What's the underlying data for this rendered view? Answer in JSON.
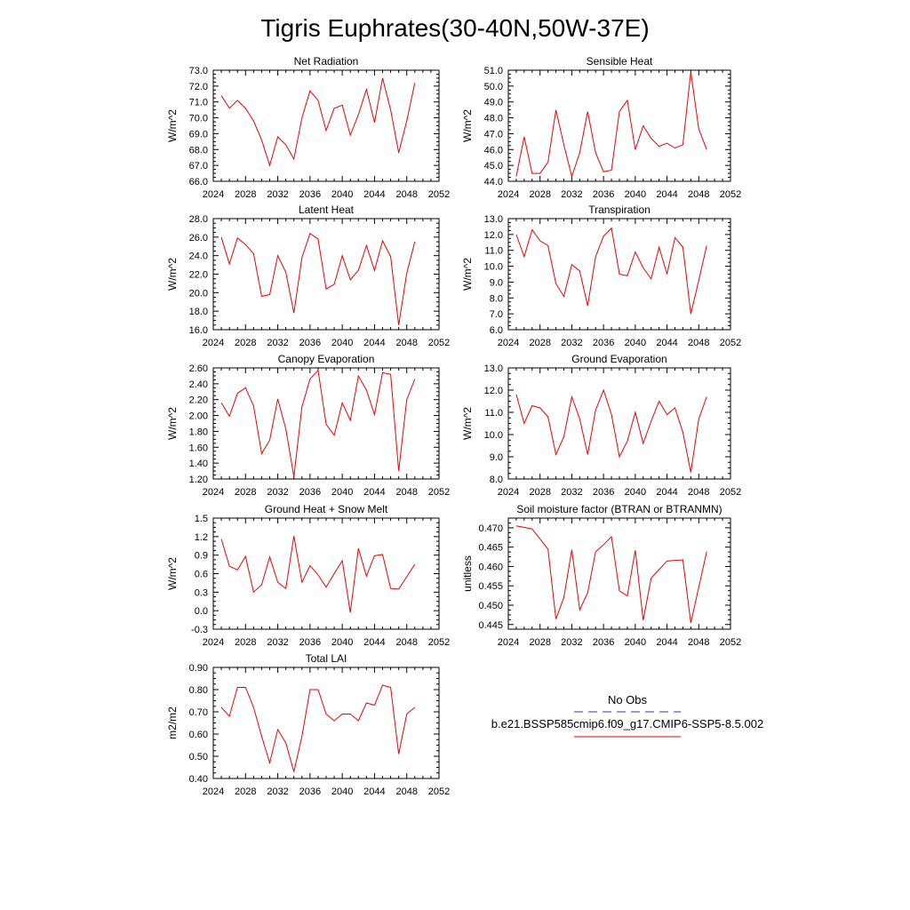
{
  "figure": {
    "title": "Tigris Euphrates(30-40N,50W-37E)"
  },
  "legend": {
    "items": [
      {
        "label": "No Obs",
        "color": "#3333aa",
        "style": "dashed"
      },
      {
        "label": "b.e21.BSSP585cmip6.f09_g17.CMIP6-SSP5-8.5.002",
        "color": "#ee0000",
        "style": "solid"
      }
    ]
  },
  "chart_data": [
    {
      "type": "line",
      "title": "Net Radiation",
      "ylabel": "W/m^2",
      "xlim": [
        2024,
        2052
      ],
      "ylim": [
        66.0,
        73.0
      ],
      "xticks": [
        2024,
        2028,
        2032,
        2036,
        2040,
        2044,
        2048,
        2052
      ],
      "yticks": [
        66.0,
        67.0,
        68.0,
        69.0,
        70.0,
        71.0,
        72.0,
        73.0
      ],
      "ytick_decimals": 1,
      "x": [
        2025,
        2026,
        2027,
        2028,
        2029,
        2030,
        2031,
        2032,
        2033,
        2034,
        2035,
        2036,
        2037,
        2038,
        2039,
        2040,
        2041,
        2042,
        2043,
        2044,
        2045,
        2046,
        2047,
        2048,
        2049
      ],
      "series": [
        {
          "color": "#ee0000",
          "values": [
            71.4,
            70.6,
            71.1,
            70.6,
            69.8,
            68.6,
            67.0,
            68.8,
            68.3,
            67.4,
            70.0,
            71.7,
            71.1,
            69.2,
            70.6,
            70.8,
            68.9,
            70.2,
            71.8,
            69.7,
            72.5,
            70.5,
            67.8,
            69.8,
            72.2
          ]
        }
      ]
    },
    {
      "type": "line",
      "title": "Sensible Heat",
      "ylabel": "W/m^2",
      "xlim": [
        2024,
        2052
      ],
      "ylim": [
        44.0,
        51.0
      ],
      "xticks": [
        2024,
        2028,
        2032,
        2036,
        2040,
        2044,
        2048,
        2052
      ],
      "yticks": [
        44.0,
        45.0,
        46.0,
        47.0,
        48.0,
        49.0,
        50.0,
        51.0
      ],
      "ytick_decimals": 1,
      "x": [
        2025,
        2026,
        2027,
        2028,
        2029,
        2030,
        2031,
        2032,
        2033,
        2034,
        2035,
        2036,
        2037,
        2038,
        2039,
        2040,
        2041,
        2042,
        2043,
        2044,
        2045,
        2046,
        2047,
        2048,
        2049
      ],
      "series": [
        {
          "color": "#ee0000",
          "values": [
            44.3,
            46.8,
            44.5,
            44.5,
            45.2,
            48.5,
            46.3,
            44.3,
            45.8,
            48.4,
            45.8,
            44.6,
            44.7,
            48.4,
            49.1,
            46.0,
            47.5,
            46.7,
            46.2,
            46.4,
            46.1,
            46.3,
            50.9,
            47.3,
            46.0
          ]
        }
      ]
    },
    {
      "type": "line",
      "title": "Latent Heat",
      "ylabel": "W/m^2",
      "xlim": [
        2024,
        2052
      ],
      "ylim": [
        16.0,
        28.0
      ],
      "xticks": [
        2024,
        2028,
        2032,
        2036,
        2040,
        2044,
        2048,
        2052
      ],
      "yticks": [
        16.0,
        18.0,
        20.0,
        22.0,
        24.0,
        26.0,
        28.0
      ],
      "ytick_decimals": 1,
      "x": [
        2025,
        2026,
        2027,
        2028,
        2029,
        2030,
        2031,
        2032,
        2033,
        2034,
        2035,
        2036,
        2037,
        2038,
        2039,
        2040,
        2041,
        2042,
        2043,
        2044,
        2045,
        2046,
        2047,
        2048,
        2049
      ],
      "series": [
        {
          "color": "#ee0000",
          "values": [
            26.0,
            23.1,
            25.9,
            25.2,
            24.2,
            19.6,
            19.8,
            24.0,
            22.2,
            17.8,
            23.8,
            26.4,
            25.8,
            20.4,
            20.9,
            24.0,
            21.4,
            22.4,
            25.1,
            22.4,
            25.6,
            23.9,
            16.5,
            22.1,
            25.5
          ]
        }
      ]
    },
    {
      "type": "line",
      "title": "Transpiration",
      "ylabel": "W/m^2",
      "xlim": [
        2024,
        2052
      ],
      "ylim": [
        6.0,
        13.0
      ],
      "xticks": [
        2024,
        2028,
        2032,
        2036,
        2040,
        2044,
        2048,
        2052
      ],
      "yticks": [
        6.0,
        7.0,
        8.0,
        9.0,
        10.0,
        11.0,
        12.0,
        13.0
      ],
      "ytick_decimals": 1,
      "x": [
        2025,
        2026,
        2027,
        2028,
        2029,
        2030,
        2031,
        2032,
        2033,
        2034,
        2035,
        2036,
        2037,
        2038,
        2039,
        2040,
        2041,
        2042,
        2043,
        2044,
        2045,
        2046,
        2047,
        2048,
        2049
      ],
      "series": [
        {
          "color": "#ee0000",
          "values": [
            12.0,
            10.6,
            12.3,
            11.6,
            11.3,
            8.9,
            8.1,
            10.1,
            9.7,
            7.5,
            10.6,
            11.9,
            12.4,
            9.5,
            9.4,
            10.9,
            9.9,
            9.2,
            11.2,
            9.5,
            11.8,
            11.2,
            7.0,
            9.1,
            11.3
          ]
        }
      ]
    },
    {
      "type": "line",
      "title": "Canopy Evaporation",
      "ylabel": "W/m^2",
      "xlim": [
        2024,
        2052
      ],
      "ylim": [
        1.2,
        2.6
      ],
      "xticks": [
        2024,
        2028,
        2032,
        2036,
        2040,
        2044,
        2048,
        2052
      ],
      "yticks": [
        1.2,
        1.4,
        1.6,
        1.8,
        2.0,
        2.2,
        2.4,
        2.6
      ],
      "ytick_decimals": 2,
      "x": [
        2025,
        2026,
        2027,
        2028,
        2029,
        2030,
        2031,
        2032,
        2033,
        2034,
        2035,
        2036,
        2037,
        2038,
        2039,
        2040,
        2041,
        2042,
        2043,
        2044,
        2045,
        2046,
        2047,
        2048,
        2049
      ],
      "series": [
        {
          "color": "#ee0000",
          "values": [
            2.16,
            1.99,
            2.28,
            2.35,
            2.12,
            1.52,
            1.69,
            2.21,
            1.83,
            1.23,
            2.11,
            2.46,
            2.57,
            1.89,
            1.75,
            2.16,
            1.94,
            2.5,
            2.32,
            2.01,
            2.54,
            2.52,
            1.3,
            2.2,
            2.46
          ]
        }
      ]
    },
    {
      "type": "line",
      "title": "Ground Evaporation",
      "ylabel": "W/m^2",
      "xlim": [
        2024,
        2052
      ],
      "ylim": [
        8.0,
        13.0
      ],
      "xticks": [
        2024,
        2028,
        2032,
        2036,
        2040,
        2044,
        2048,
        2052
      ],
      "yticks": [
        8.0,
        9.0,
        10.0,
        11.0,
        12.0,
        13.0
      ],
      "ytick_decimals": 1,
      "x": [
        2025,
        2026,
        2027,
        2028,
        2029,
        2030,
        2031,
        2032,
        2033,
        2034,
        2035,
        2036,
        2037,
        2038,
        2039,
        2040,
        2041,
        2042,
        2043,
        2044,
        2045,
        2046,
        2047,
        2048,
        2049
      ],
      "series": [
        {
          "color": "#ee0000",
          "values": [
            11.8,
            10.5,
            11.3,
            11.2,
            10.8,
            9.1,
            9.9,
            11.7,
            10.7,
            9.1,
            11.1,
            12.0,
            10.9,
            9.0,
            9.7,
            11.0,
            9.6,
            10.6,
            11.5,
            10.9,
            11.2,
            10.1,
            8.3,
            10.7,
            11.7
          ]
        }
      ]
    },
    {
      "type": "line",
      "title": "Ground Heat + Snow Melt",
      "ylabel": "W/m^2",
      "xlim": [
        2024,
        2052
      ],
      "ylim": [
        -0.3,
        1.5
      ],
      "xticks": [
        2024,
        2028,
        2032,
        2036,
        2040,
        2044,
        2048,
        2052
      ],
      "yticks": [
        -0.3,
        0.0,
        0.3,
        0.6,
        0.9,
        1.2,
        1.5
      ],
      "ytick_decimals": 1,
      "x": [
        2025,
        2026,
        2027,
        2028,
        2029,
        2030,
        2031,
        2032,
        2033,
        2034,
        2035,
        2036,
        2037,
        2038,
        2039,
        2040,
        2041,
        2042,
        2043,
        2044,
        2045,
        2046,
        2047,
        2048,
        2049
      ],
      "series": [
        {
          "color": "#ee0000",
          "values": [
            1.16,
            0.72,
            0.66,
            0.88,
            0.3,
            0.42,
            0.87,
            0.46,
            0.36,
            1.21,
            0.46,
            0.73,
            0.58,
            0.38,
            0.6,
            0.81,
            -0.03,
            1.01,
            0.56,
            0.89,
            0.91,
            0.36,
            0.35,
            0.55,
            0.75
          ]
        }
      ]
    },
    {
      "type": "line",
      "title": "Soil moisture factor (BTRAN or BTRANMN)",
      "ylabel": "unitless",
      "xlim": [
        2024,
        2052
      ],
      "ylim": [
        0.4438,
        0.4725
      ],
      "xticks": [
        2024,
        2028,
        2032,
        2036,
        2040,
        2044,
        2048,
        2052
      ],
      "yticks": [
        0.445,
        0.45,
        0.455,
        0.46,
        0.465,
        0.47
      ],
      "ytick_decimals": 3,
      "x": [
        2025,
        2027,
        2029,
        2030,
        2031,
        2032,
        2033,
        2034,
        2035,
        2036,
        2037,
        2038,
        2039,
        2040,
        2041,
        2042,
        2044,
        2046,
        2047,
        2049
      ],
      "series": [
        {
          "color": "#ee0000",
          "values": [
            0.4705,
            0.4697,
            0.4645,
            0.4464,
            0.452,
            0.4643,
            0.4488,
            0.4532,
            0.4638,
            0.4656,
            0.4677,
            0.4537,
            0.4524,
            0.4642,
            0.4461,
            0.457,
            0.4614,
            0.4617,
            0.4454,
            0.4638
          ]
        }
      ]
    },
    {
      "type": "line",
      "title": "Total LAI",
      "ylabel": "m2/m2",
      "xlim": [
        2024,
        2052
      ],
      "ylim": [
        0.4,
        0.9
      ],
      "xticks": [
        2024,
        2028,
        2032,
        2036,
        2040,
        2044,
        2048,
        2052
      ],
      "yticks": [
        0.4,
        0.5,
        0.6,
        0.7,
        0.8,
        0.9
      ],
      "ytick_decimals": 2,
      "x": [
        2025,
        2026,
        2027,
        2028,
        2029,
        2030,
        2031,
        2032,
        2033,
        2034,
        2035,
        2036,
        2037,
        2038,
        2039,
        2040,
        2041,
        2042,
        2043,
        2044,
        2045,
        2046,
        2047,
        2048,
        2049
      ],
      "series": [
        {
          "color": "#ee0000",
          "values": [
            0.72,
            0.68,
            0.81,
            0.81,
            0.72,
            0.59,
            0.47,
            0.62,
            0.56,
            0.43,
            0.59,
            0.8,
            0.8,
            0.69,
            0.66,
            0.69,
            0.69,
            0.66,
            0.74,
            0.73,
            0.82,
            0.81,
            0.51,
            0.69,
            0.72
          ]
        }
      ]
    }
  ]
}
